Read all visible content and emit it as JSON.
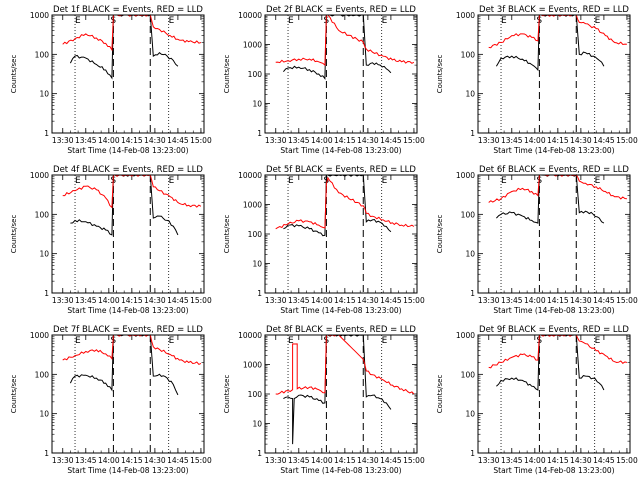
{
  "figure": {
    "ylabel": "Counts/sec",
    "xlabel": "Start Time (14-Feb-08 13:23:00)",
    "marker_labels": [
      "E",
      "S",
      "E"
    ]
  },
  "colors": {
    "events": "#000000",
    "lld": "#ff0000",
    "axes": "#000000",
    "background": "#ffffff"
  },
  "chart_data": [
    {
      "type": "line",
      "title": "Det 1f BLACK = Events, RED = LLD",
      "xlabel": "Start Time (14-Feb-08 13:23:00)",
      "ylabel": "Counts/sec",
      "yscale": "log",
      "ylim": [
        1,
        1000
      ],
      "y_ticks": [
        "1",
        "10",
        "100",
        "1000"
      ],
      "x_ticks": [
        "13:30",
        "13:45",
        "14:00",
        "14:15",
        "14:30",
        "14:45",
        "15:00"
      ],
      "grid": false,
      "markers": {
        "dotted": [
          "13:38",
          "14:39"
        ],
        "dashed": [
          "14:03",
          "14:27"
        ]
      },
      "series": [
        {
          "name": "Events",
          "color": "#000000",
          "x": [
            "13:35",
            "13:38",
            "13:45",
            "13:52",
            "13:58",
            "14:02",
            "14:03",
            "14:04",
            "14:11",
            "14:27",
            "14:29",
            "14:33",
            "14:38",
            "14:42",
            "14:45"
          ],
          "y": [
            60,
            90,
            80,
            55,
            40,
            25,
            1000,
            1000,
            1000,
            1000,
            90,
            110,
            90,
            70,
            50
          ]
        },
        {
          "name": "LLD",
          "color": "#ff0000",
          "x": [
            "13:30",
            "13:38",
            "13:45",
            "13:52",
            "13:58",
            "14:02",
            "14:03",
            "14:04",
            "14:11",
            "14:27",
            "14:29",
            "14:33",
            "14:40",
            "14:46",
            "14:52",
            "15:00"
          ],
          "y": [
            180,
            250,
            330,
            260,
            190,
            130,
            1000,
            1000,
            1000,
            1000,
            500,
            430,
            300,
            230,
            210,
            200
          ]
        }
      ]
    },
    {
      "type": "line",
      "title": "Det 2f BLACK = Events, RED = LLD",
      "xlabel": "Start Time (14-Feb-08 13:23:00)",
      "ylabel": "Counts/sec",
      "yscale": "log",
      "ylim": [
        1,
        10000
      ],
      "y_ticks": [
        "1",
        "10",
        "100",
        "1000",
        "10000"
      ],
      "x_ticks": [
        "13:30",
        "13:45",
        "14:00",
        "14:15",
        "14:30",
        "14:45",
        "15:00"
      ],
      "grid": false,
      "markers": {
        "dotted": [
          "13:38",
          "14:39"
        ],
        "dashed": [
          "14:03",
          "14:27"
        ]
      },
      "series": [
        {
          "name": "Events",
          "color": "#000000",
          "x": [
            "13:35",
            "13:38",
            "13:45",
            "13:52",
            "13:58",
            "14:02",
            "14:03",
            "14:04",
            "14:11",
            "14:27",
            "14:29",
            "14:33",
            "14:38",
            "14:42",
            "14:45"
          ],
          "y": [
            120,
            160,
            170,
            140,
            100,
            70,
            10000,
            10000,
            10000,
            10000,
            200,
            240,
            200,
            150,
            110
          ]
        },
        {
          "name": "LLD",
          "color": "#ff0000",
          "x": [
            "13:30",
            "13:38",
            "13:45",
            "13:52",
            "13:58",
            "14:02",
            "14:03",
            "14:04",
            "14:11",
            "14:27",
            "14:29",
            "14:33",
            "14:40",
            "14:46",
            "14:52",
            "15:00"
          ],
          "y": [
            250,
            280,
            320,
            320,
            260,
            200,
            10000,
            10000,
            3000,
            1200,
            700,
            550,
            400,
            300,
            260,
            250
          ]
        }
      ]
    },
    {
      "type": "line",
      "title": "Det 3f BLACK = Events, RED = LLD",
      "xlabel": "Start Time (14-Feb-08 13:23:00)",
      "ylabel": "Counts/sec",
      "yscale": "log",
      "ylim": [
        1,
        1000
      ],
      "y_ticks": [
        "1",
        "10",
        "100",
        "1000"
      ],
      "x_ticks": [
        "13:30",
        "13:45",
        "14:00",
        "14:15",
        "14:30",
        "14:45",
        "15:00"
      ],
      "grid": false,
      "markers": {
        "dotted": [
          "13:38",
          "14:39"
        ],
        "dashed": [
          "14:03",
          "14:27"
        ]
      },
      "series": [
        {
          "name": "Events",
          "color": "#000000",
          "x": [
            "13:35",
            "13:38",
            "13:45",
            "13:52",
            "13:58",
            "14:02",
            "14:03",
            "14:04",
            "14:11",
            "14:27",
            "14:29",
            "14:33",
            "14:38",
            "14:42",
            "14:45"
          ],
          "y": [
            50,
            80,
            90,
            75,
            55,
            40,
            1000,
            1000,
            1000,
            1000,
            100,
            110,
            90,
            70,
            50
          ]
        },
        {
          "name": "LLD",
          "color": "#ff0000",
          "x": [
            "13:30",
            "13:38",
            "13:45",
            "13:52",
            "13:58",
            "14:02",
            "14:03",
            "14:04",
            "14:11",
            "14:27",
            "14:29",
            "14:33",
            "14:40",
            "14:46",
            "14:52",
            "15:00"
          ],
          "y": [
            150,
            200,
            300,
            330,
            270,
            220,
            1000,
            1000,
            1000,
            1000,
            650,
            600,
            450,
            300,
            200,
            180
          ]
        }
      ]
    },
    {
      "type": "line",
      "title": "Det 4f BLACK = Events, RED = LLD",
      "xlabel": "Start Time (14-Feb-08 13:23:00)",
      "ylabel": "Counts/sec",
      "yscale": "log",
      "ylim": [
        1,
        1000
      ],
      "y_ticks": [
        "1",
        "10",
        "100",
        "1000"
      ],
      "x_ticks": [
        "13:30",
        "13:45",
        "14:00",
        "14:15",
        "14:30",
        "14:45",
        "15:00"
      ],
      "grid": false,
      "markers": {
        "dotted": [
          "13:38",
          "14:39"
        ],
        "dashed": [
          "14:03",
          "14:27"
        ]
      },
      "series": [
        {
          "name": "Events",
          "color": "#000000",
          "x": [
            "13:35",
            "13:38",
            "13:45",
            "13:52",
            "13:58",
            "14:02",
            "14:03",
            "14:04",
            "14:11",
            "14:27",
            "14:29",
            "14:33",
            "14:38",
            "14:42",
            "14:45"
          ],
          "y": [
            60,
            70,
            65,
            50,
            40,
            30,
            1000,
            1000,
            1000,
            1000,
            80,
            90,
            70,
            50,
            30
          ]
        },
        {
          "name": "LLD",
          "color": "#ff0000",
          "x": [
            "13:30",
            "13:38",
            "13:45",
            "13:52",
            "13:58",
            "14:02",
            "14:03",
            "14:04",
            "14:11",
            "14:27",
            "14:29",
            "14:33",
            "14:40",
            "14:46",
            "14:52",
            "15:00"
          ],
          "y": [
            300,
            400,
            520,
            420,
            260,
            150,
            1000,
            1000,
            1000,
            1000,
            500,
            400,
            280,
            190,
            170,
            160
          ]
        }
      ]
    },
    {
      "type": "line",
      "title": "Det 5f BLACK = Events, RED = LLD",
      "xlabel": "Start Time (14-Feb-08 13:23:00)",
      "ylabel": "Counts/sec",
      "yscale": "log",
      "ylim": [
        1,
        10000
      ],
      "y_ticks": [
        "1",
        "10",
        "100",
        "1000",
        "10000"
      ],
      "x_ticks": [
        "13:30",
        "13:45",
        "14:00",
        "14:15",
        "14:30",
        "14:45",
        "15:00"
      ],
      "grid": false,
      "markers": {
        "dotted": [
          "13:38",
          "14:39"
        ],
        "dashed": [
          "14:03",
          "14:27"
        ]
      },
      "series": [
        {
          "name": "Events",
          "color": "#000000",
          "x": [
            "13:35",
            "13:38",
            "13:45",
            "13:52",
            "13:58",
            "14:02",
            "14:03",
            "14:04",
            "14:11",
            "14:27",
            "14:29",
            "14:33",
            "14:38",
            "14:42",
            "14:45"
          ],
          "y": [
            150,
            200,
            190,
            150,
            110,
            90,
            10000,
            10000,
            10000,
            10000,
            260,
            300,
            250,
            180,
            120
          ]
        },
        {
          "name": "LLD",
          "color": "#ff0000",
          "x": [
            "13:30",
            "13:38",
            "13:45",
            "13:52",
            "13:58",
            "14:02",
            "14:03",
            "14:04",
            "14:11",
            "14:27",
            "14:29",
            "14:33",
            "14:40",
            "14:46",
            "14:52",
            "15:00"
          ],
          "y": [
            150,
            220,
            280,
            260,
            200,
            160,
            5000,
            8000,
            2500,
            900,
            500,
            400,
            300,
            240,
            200,
            180
          ]
        }
      ]
    },
    {
      "type": "line",
      "title": "Det 6f BLACK = Events, RED = LLD",
      "xlabel": "Start Time (14-Feb-08 13:23:00)",
      "ylabel": "Counts/sec",
      "yscale": "log",
      "ylim": [
        1,
        1000
      ],
      "y_ticks": [
        "1",
        "10",
        "100",
        "1000"
      ],
      "x_ticks": [
        "13:30",
        "13:45",
        "14:00",
        "14:15",
        "14:30",
        "14:45",
        "15:00"
      ],
      "grid": false,
      "markers": {
        "dotted": [
          "13:38",
          "14:39"
        ],
        "dashed": [
          "14:03",
          "14:27"
        ]
      },
      "series": [
        {
          "name": "Events",
          "color": "#000000",
          "x": [
            "13:35",
            "13:38",
            "13:45",
            "13:52",
            "13:58",
            "14:02",
            "14:03",
            "14:04",
            "14:11",
            "14:27",
            "14:29",
            "14:33",
            "14:38",
            "14:42",
            "14:45"
          ],
          "y": [
            80,
            100,
            110,
            90,
            70,
            60,
            1000,
            1000,
            1000,
            1000,
            110,
            120,
            100,
            80,
            60
          ]
        },
        {
          "name": "LLD",
          "color": "#ff0000",
          "x": [
            "13:30",
            "13:38",
            "13:45",
            "13:52",
            "13:58",
            "14:02",
            "14:03",
            "14:04",
            "14:11",
            "14:27",
            "14:29",
            "14:33",
            "14:40",
            "14:46",
            "14:52",
            "15:00"
          ],
          "y": [
            200,
            250,
            380,
            460,
            380,
            300,
            1000,
            1000,
            1000,
            1000,
            700,
            620,
            500,
            380,
            280,
            250
          ]
        }
      ]
    },
    {
      "type": "line",
      "title": "Det 7f BLACK = Events, RED = LLD",
      "xlabel": "Start Time (14-Feb-08 13:23:00)",
      "ylabel": "Counts/sec",
      "yscale": "log",
      "ylim": [
        1,
        1000
      ],
      "y_ticks": [
        "1",
        "10",
        "100",
        "1000"
      ],
      "x_ticks": [
        "13:30",
        "13:45",
        "14:00",
        "14:15",
        "14:30",
        "14:45",
        "15:00"
      ],
      "grid": false,
      "markers": {
        "dotted": [
          "13:38",
          "14:39"
        ],
        "dashed": [
          "14:03",
          "14:27"
        ]
      },
      "series": [
        {
          "name": "Events",
          "color": "#000000",
          "x": [
            "13:35",
            "13:38",
            "13:45",
            "13:52",
            "13:58",
            "14:02",
            "14:03",
            "14:04",
            "14:11",
            "14:27",
            "14:29",
            "14:33",
            "14:38",
            "14:42",
            "14:45"
          ],
          "y": [
            60,
            90,
            95,
            80,
            60,
            40,
            1000,
            1000,
            1000,
            1000,
            90,
            100,
            80,
            55,
            30
          ]
        },
        {
          "name": "LLD",
          "color": "#ff0000",
          "x": [
            "13:30",
            "13:38",
            "13:45",
            "13:52",
            "13:58",
            "14:02",
            "14:03",
            "14:04",
            "14:11",
            "14:27",
            "14:29",
            "14:33",
            "14:40",
            "14:46",
            "14:52",
            "15:00"
          ],
          "y": [
            230,
            300,
            380,
            420,
            330,
            250,
            1000,
            1000,
            1000,
            1000,
            500,
            430,
            320,
            230,
            200,
            190
          ]
        }
      ]
    },
    {
      "type": "line",
      "title": "Det 8f BLACK = Events, RED = LLD",
      "xlabel": "Start Time (14-Feb-08 13:23:00)",
      "ylabel": "Counts/sec",
      "yscale": "log",
      "ylim": [
        1,
        10000
      ],
      "y_ticks": [
        "1",
        "10",
        "100",
        "1000",
        "10000"
      ],
      "x_ticks": [
        "13:30",
        "13:45",
        "14:00",
        "14:15",
        "14:30",
        "14:45",
        "15:00"
      ],
      "grid": false,
      "markers": {
        "dotted": [
          "13:38",
          "14:39"
        ],
        "dashed": [
          "14:03",
          "14:27"
        ]
      },
      "series": [
        {
          "name": "Events",
          "color": "#000000",
          "x": [
            "13:35",
            "13:38",
            "13:41",
            "13:41",
            "13:42",
            "13:45",
            "13:52",
            "13:58",
            "14:02",
            "14:03",
            "14:04",
            "14:11",
            "14:27",
            "14:29",
            "14:33",
            "14:38",
            "14:42",
            "14:45"
          ],
          "y": [
            70,
            80,
            70,
            2,
            70,
            90,
            80,
            60,
            50,
            10000,
            10000,
            10000,
            10000,
            80,
            90,
            70,
            50,
            30
          ]
        },
        {
          "name": "LLD",
          "color": "#ff0000",
          "x": [
            "13:30",
            "13:38",
            "13:41",
            "13:41",
            "13:44",
            "13:44",
            "13:52",
            "13:58",
            "14:02",
            "14:03",
            "14:04",
            "14:11",
            "14:27",
            "14:29",
            "14:33",
            "14:40",
            "14:46",
            "14:52",
            "15:00"
          ],
          "y": [
            100,
            130,
            140,
            5000,
            5000,
            150,
            170,
            140,
            110,
            10000,
            10000,
            10000,
            1500,
            600,
            450,
            300,
            200,
            150,
            100
          ]
        }
      ]
    },
    {
      "type": "line",
      "title": "Det 9f BLACK = Events, RED = LLD",
      "xlabel": "Start Time (14-Feb-08 13:23:00)",
      "ylabel": "Counts/sec",
      "yscale": "log",
      "ylim": [
        1,
        1000
      ],
      "y_ticks": [
        "1",
        "10",
        "100",
        "1000"
      ],
      "x_ticks": [
        "13:30",
        "13:45",
        "14:00",
        "14:15",
        "14:30",
        "14:45",
        "15:00"
      ],
      "grid": false,
      "markers": {
        "dotted": [
          "13:38",
          "14:39"
        ],
        "dashed": [
          "14:03",
          "14:27"
        ]
      },
      "series": [
        {
          "name": "Events",
          "color": "#000000",
          "x": [
            "13:35",
            "13:38",
            "13:45",
            "13:52",
            "13:58",
            "14:02",
            "14:03",
            "14:04",
            "14:11",
            "14:27",
            "14:29",
            "14:33",
            "14:38",
            "14:42",
            "14:45"
          ],
          "y": [
            50,
            70,
            80,
            70,
            50,
            40,
            1000,
            1000,
            1000,
            1000,
            80,
            90,
            80,
            60,
            40
          ]
        },
        {
          "name": "LLD",
          "color": "#ff0000",
          "x": [
            "13:30",
            "13:38",
            "13:45",
            "13:52",
            "13:58",
            "14:02",
            "14:03",
            "14:04",
            "14:11",
            "14:27",
            "14:29",
            "14:33",
            "14:40",
            "14:46",
            "14:52",
            "15:00"
          ],
          "y": [
            150,
            200,
            270,
            320,
            280,
            230,
            1000,
            1000,
            1000,
            1000,
            700,
            600,
            400,
            300,
            210,
            200
          ]
        }
      ]
    }
  ]
}
